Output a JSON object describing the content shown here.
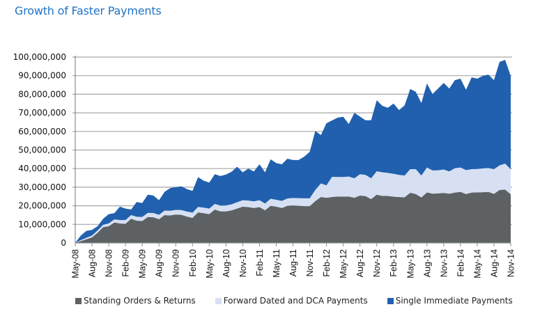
{
  "chart_data": {
    "type": "area",
    "stacked": true,
    "title": "Growth of Faster Payments",
    "xlabel": "",
    "ylabel": "",
    "ylim": [
      0,
      100000000
    ],
    "yticks": [
      0,
      10000000,
      20000000,
      30000000,
      40000000,
      50000000,
      60000000,
      70000000,
      80000000,
      90000000,
      100000000
    ],
    "ytick_labels": [
      "0",
      "10,000,000",
      "20,000,000",
      "30,000,000",
      "40,000,000",
      "50,000,000",
      "60,000,000",
      "70,000,000",
      "80,000,000",
      "90,000,000",
      "100,000,000"
    ],
    "grid": true,
    "legend_position": "bottom",
    "x_tick_labels": [
      "May-08",
      "Aug-08",
      "Nov-08",
      "Feb-09",
      "May-09",
      "Aug-09",
      "Nov-09",
      "Feb-10",
      "May-10",
      "Aug-10",
      "Nov-10",
      "Feb-11",
      "May-11",
      "Aug-11",
      "Nov-11",
      "Feb-12",
      "May-12",
      "Aug-12",
      "Nov-12",
      "Feb-13",
      "May-13",
      "Aug-13",
      "Nov-13",
      "Feb-14",
      "May-14",
      "Aug-14",
      "Nov-14"
    ],
    "x": [
      "May-08",
      "Jun-08",
      "Jul-08",
      "Aug-08",
      "Sep-08",
      "Oct-08",
      "Nov-08",
      "Dec-08",
      "Jan-09",
      "Feb-09",
      "Mar-09",
      "Apr-09",
      "May-09",
      "Jun-09",
      "Jul-09",
      "Aug-09",
      "Sep-09",
      "Oct-09",
      "Nov-09",
      "Dec-09",
      "Jan-10",
      "Feb-10",
      "Mar-10",
      "Apr-10",
      "May-10",
      "Jun-10",
      "Jul-10",
      "Aug-10",
      "Sep-10",
      "Oct-10",
      "Nov-10",
      "Dec-10",
      "Jan-11",
      "Feb-11",
      "Mar-11",
      "Apr-11",
      "May-11",
      "Jun-11",
      "Jul-11",
      "Aug-11",
      "Sep-11",
      "Oct-11",
      "Nov-11",
      "Dec-11",
      "Jan-12",
      "Feb-12",
      "Mar-12",
      "Apr-12",
      "May-12",
      "Jun-12",
      "Jul-12",
      "Aug-12",
      "Sep-12",
      "Oct-12",
      "Nov-12",
      "Dec-12",
      "Jan-13",
      "Feb-13",
      "Mar-13",
      "Apr-13",
      "May-13",
      "Jun-13",
      "Jul-13",
      "Aug-13",
      "Sep-13",
      "Oct-13",
      "Nov-13",
      "Dec-13",
      "Jan-14",
      "Feb-14",
      "Mar-14",
      "Apr-14",
      "May-14",
      "Jun-14",
      "Jul-14",
      "Aug-14",
      "Sep-14",
      "Oct-14",
      "Nov-14"
    ],
    "series": [
      {
        "name": "Standing Orders & Returns",
        "color": "#5d6163",
        "values": [
          0,
          1000000,
          2000000,
          3000000,
          5500000,
          8500000,
          9000000,
          11000000,
          10500000,
          10300000,
          13000000,
          12000000,
          11800000,
          14000000,
          13800000,
          12800000,
          15000000,
          14800000,
          15300000,
          15100000,
          14200000,
          13500000,
          16500000,
          16000000,
          15500000,
          18000000,
          17000000,
          17000000,
          17500000,
          18500000,
          19500000,
          19300000,
          18800000,
          19300000,
          17600000,
          20000000,
          19500000,
          18800000,
          20000000,
          20200000,
          20000000,
          19800000,
          19800000,
          22500000,
          24700000,
          24300000,
          24700000,
          25000000,
          24900000,
          25000000,
          24300000,
          25500000,
          25200000,
          23600000,
          26000000,
          25300000,
          25300000,
          24900000,
          24700000,
          24600000,
          27000000,
          26300000,
          24500000,
          27200000,
          26500000,
          26700000,
          26900000,
          26500000,
          27100000,
          27500000,
          26300000,
          27100000,
          27200000,
          27300000,
          27500000,
          26400000,
          28500000,
          28700000,
          26200000
        ]
      },
      {
        "name": "Forward Dated and DCA Payments",
        "color": "#d6e0f2",
        "values": [
          0,
          500000,
          800000,
          1000000,
          1200000,
          1300000,
          1500000,
          1700000,
          1800000,
          2000000,
          2000000,
          2100000,
          2200000,
          2200000,
          2300000,
          2300000,
          2400000,
          2500000,
          2500000,
          2600000,
          2700000,
          2800000,
          2900000,
          3000000,
          3000000,
          3000000,
          3100000,
          3200000,
          3300000,
          3400000,
          3500000,
          3500000,
          3600000,
          3700000,
          3600000,
          3800000,
          3700000,
          3800000,
          3900000,
          4000000,
          4100000,
          4200000,
          4200000,
          6000000,
          7300000,
          6700000,
          10900000,
          10500000,
          10600000,
          10700000,
          10500000,
          11500000,
          11400000,
          11200000,
          12600000,
          12700000,
          12400000,
          12300000,
          11900000,
          11700000,
          12700000,
          13400000,
          11800000,
          13400000,
          12500000,
          12400000,
          12600000,
          12000000,
          13100000,
          13100000,
          12900000,
          12600000,
          12600000,
          12800000,
          12800000,
          13300000,
          13200000,
          14000000,
          13500000
        ]
      },
      {
        "name": "Single Immediate Payments",
        "color": "#2060ae",
        "values": [
          0,
          2500000,
          3700000,
          3000000,
          2300000,
          3200000,
          5000000,
          3300000,
          7200000,
          6200000,
          3000000,
          7900000,
          7500000,
          9800000,
          9400000,
          7900000,
          10100000,
          12200000,
          12200000,
          12800000,
          12100000,
          11700000,
          16000000,
          14500000,
          14000000,
          16000000,
          15900000,
          16600000,
          17500000,
          19100000,
          15000000,
          17200000,
          16100000,
          19300000,
          16800000,
          21200000,
          19800000,
          19700000,
          21400000,
          20400000,
          20500000,
          22400000,
          25000000,
          31800000,
          26000000,
          33400000,
          30300000,
          31900000,
          32400000,
          28300000,
          35200000,
          31000000,
          29400000,
          31200000,
          38200000,
          35800000,
          35000000,
          37800000,
          34900000,
          37700000,
          43100000,
          41600000,
          39000000,
          45200000,
          41100000,
          44000000,
          46600000,
          44600000,
          47400000,
          47800000,
          43200000,
          49400000,
          48600000,
          49800000,
          50300000,
          47900000,
          55700000,
          55800000,
          50200000
        ]
      }
    ]
  }
}
